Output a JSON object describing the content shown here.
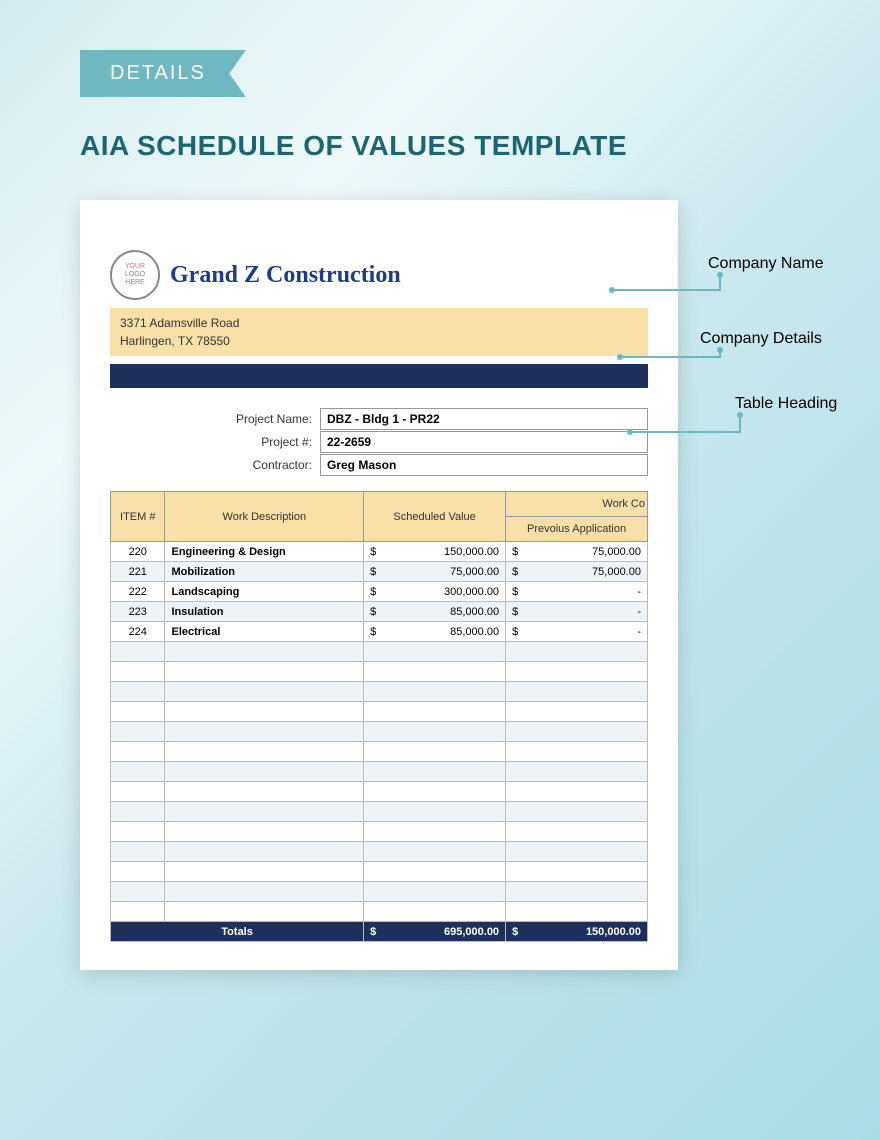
{
  "ribbon_label": "DETAILS",
  "page_title": "AIA SCHEDULE OF VALUES TEMPLATE",
  "logo_text": {
    "line1": "YOUR",
    "line2": "LOGO",
    "line3": "HERE"
  },
  "company": {
    "name": "Grand Z Construction",
    "address_line1": "3371 Adamsville Road",
    "address_line2": "Harlingen, TX 78550"
  },
  "project": {
    "name_label": "Project Name:",
    "name_value": "DBZ - Bldg 1 - PR22",
    "number_label": "Project #:",
    "number_value": "22-2659",
    "contractor_label": "Contractor:",
    "contractor_value": "Greg Mason"
  },
  "table": {
    "headers": {
      "item": "ITEM #",
      "desc": "Work Description",
      "scheduled": "Scheduled Value",
      "work_co": "Work Co",
      "prev_app": "Prevoius Application"
    },
    "rows": [
      {
        "item": "220",
        "desc": "Engineering & Design",
        "scheduled": "150,000.00",
        "prev": "75,000.00"
      },
      {
        "item": "221",
        "desc": "Mobilization",
        "scheduled": "75,000.00",
        "prev": "75,000.00"
      },
      {
        "item": "222",
        "desc": "Landscaping",
        "scheduled": "300,000.00",
        "prev": "-"
      },
      {
        "item": "223",
        "desc": "Insulation",
        "scheduled": "85,000.00",
        "prev": "-"
      },
      {
        "item": "224",
        "desc": "Electrical",
        "scheduled": "85,000.00",
        "prev": "-"
      }
    ],
    "empty_rows": 14,
    "totals": {
      "label": "Totals",
      "scheduled": "695,000.00",
      "prev": "150,000.00"
    }
  },
  "annotations": {
    "company_name": "Company Name",
    "company_details": "Company Details",
    "table_heading": "Table Heading"
  },
  "colors": {
    "ribbon": "#6fb8c1",
    "title": "#1b6670",
    "header_yellow": "#f9e0a8",
    "navy": "#1e2f5c",
    "company_name": "#1e3a8a"
  }
}
